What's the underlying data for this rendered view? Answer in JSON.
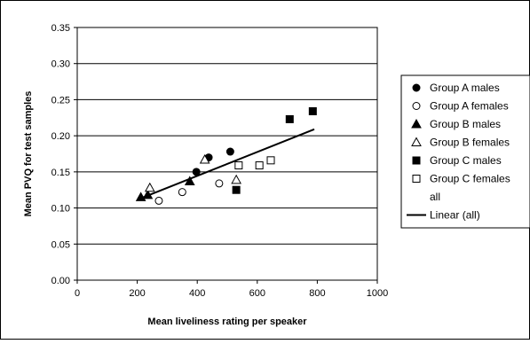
{
  "chart_data": {
    "type": "scatter",
    "title": "",
    "xlabel": "Mean liveliness rating per speaker",
    "ylabel": "Mean PVQ for test samples",
    "xlim": [
      0,
      1000
    ],
    "ylim": [
      0,
      0.35
    ],
    "x_ticks": [
      0,
      200,
      400,
      600,
      800,
      1000
    ],
    "x_tick_labels": [
      "0",
      "200",
      "400",
      "600",
      "800",
      "1000"
    ],
    "y_ticks": [
      0,
      0.05,
      0.1,
      0.15,
      0.2,
      0.25,
      0.3,
      0.35
    ],
    "y_tick_labels": [
      "0.00",
      "0.05",
      "0.10",
      "0.15",
      "0.20",
      "0.25",
      "0.30",
      "0.35"
    ],
    "grid": "horizontal",
    "legend_position": "right",
    "series": [
      {
        "name": "Group A males",
        "marker": "circle-filled",
        "color": "#000000",
        "points": [
          [
            397,
            0.15
          ],
          [
            438,
            0.17
          ],
          [
            510,
            0.178
          ]
        ]
      },
      {
        "name": "Group A females",
        "marker": "circle-open",
        "color": "#000000",
        "points": [
          [
            272,
            0.11
          ],
          [
            350,
            0.122
          ],
          [
            473,
            0.134
          ]
        ]
      },
      {
        "name": "Group B males",
        "marker": "triangle-filled",
        "color": "#000000",
        "points": [
          [
            212,
            0.115
          ],
          [
            235,
            0.118
          ],
          [
            375,
            0.137
          ]
        ]
      },
      {
        "name": "Group B females",
        "marker": "triangle-open",
        "color": "#000000",
        "points": [
          [
            242,
            0.128
          ],
          [
            425,
            0.167
          ],
          [
            530,
            0.139
          ]
        ]
      },
      {
        "name": "Group C males",
        "marker": "square-filled",
        "color": "#000000",
        "points": [
          [
            530,
            0.125
          ],
          [
            708,
            0.223
          ],
          [
            785,
            0.234
          ]
        ]
      },
      {
        "name": "Group C females",
        "marker": "square-open",
        "color": "#000000",
        "points": [
          [
            538,
            0.159
          ],
          [
            607,
            0.159
          ],
          [
            645,
            0.166
          ]
        ]
      },
      {
        "name": "all",
        "marker": "none",
        "color": "#000000",
        "points": []
      },
      {
        "name": "Linear (all)",
        "type": "line",
        "color": "#000000",
        "points": [
          [
            210,
            0.113
          ],
          [
            790,
            0.209
          ]
        ]
      }
    ]
  }
}
